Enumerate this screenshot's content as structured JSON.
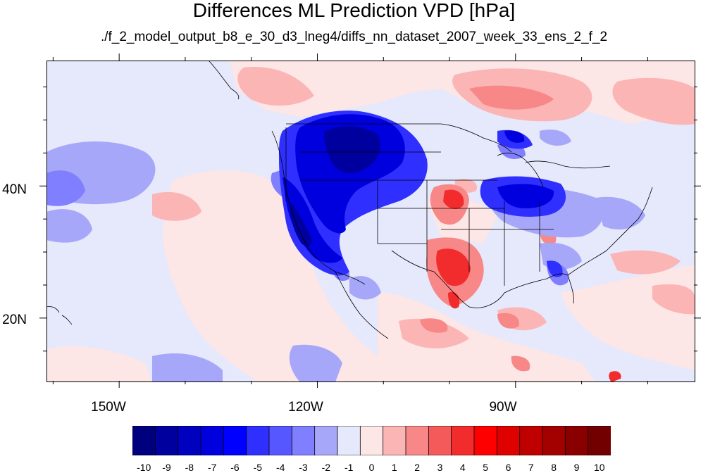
{
  "title": "Differences ML Prediction VPD [hPa]",
  "subtitle": "./f_2_model_output_b8_e_30_d3_lneg4/diffs_nn_dataset_2007_week_33_ens_2_f_2",
  "map": {
    "projection": "cylindrical-equidistant",
    "lon_range": [
      -161,
      -63
    ],
    "lat_range": [
      10.5,
      59
    ],
    "lat_labels": [
      {
        "lat": 40,
        "label": "40N"
      },
      {
        "lat": 20,
        "label": "20N"
      }
    ],
    "lon_labels": [
      {
        "lon": -150,
        "label": "150W"
      },
      {
        "lon": -120,
        "label": "120W"
      },
      {
        "lon": -90,
        "label": "90W"
      }
    ],
    "background_color": "#e6e8fb",
    "features": [
      "coastlines",
      "us-state-borders",
      "country-borders",
      "great-lakes"
    ]
  },
  "colorbar": {
    "labels": [
      "-10",
      "-9",
      "-8",
      "-7",
      "-6",
      "-5",
      "-4",
      "-3",
      "-2",
      "-1",
      "0",
      "1",
      "2",
      "3",
      "4",
      "5",
      "6",
      "7",
      "8",
      "9",
      "10"
    ],
    "colors": [
      "#00007f",
      "#00009f",
      "#0000bf",
      "#0000df",
      "#0000ff",
      "#2f2fff",
      "#5757ff",
      "#7f7fff",
      "#a7a7fa",
      "#e6e8fb",
      "#fde6e6",
      "#fbb5b5",
      "#f88888",
      "#f55a5a",
      "#f22c2c",
      "#ff0000",
      "#df0000",
      "#bf0000",
      "#a30000",
      "#8a0000",
      "#720000"
    ]
  }
}
